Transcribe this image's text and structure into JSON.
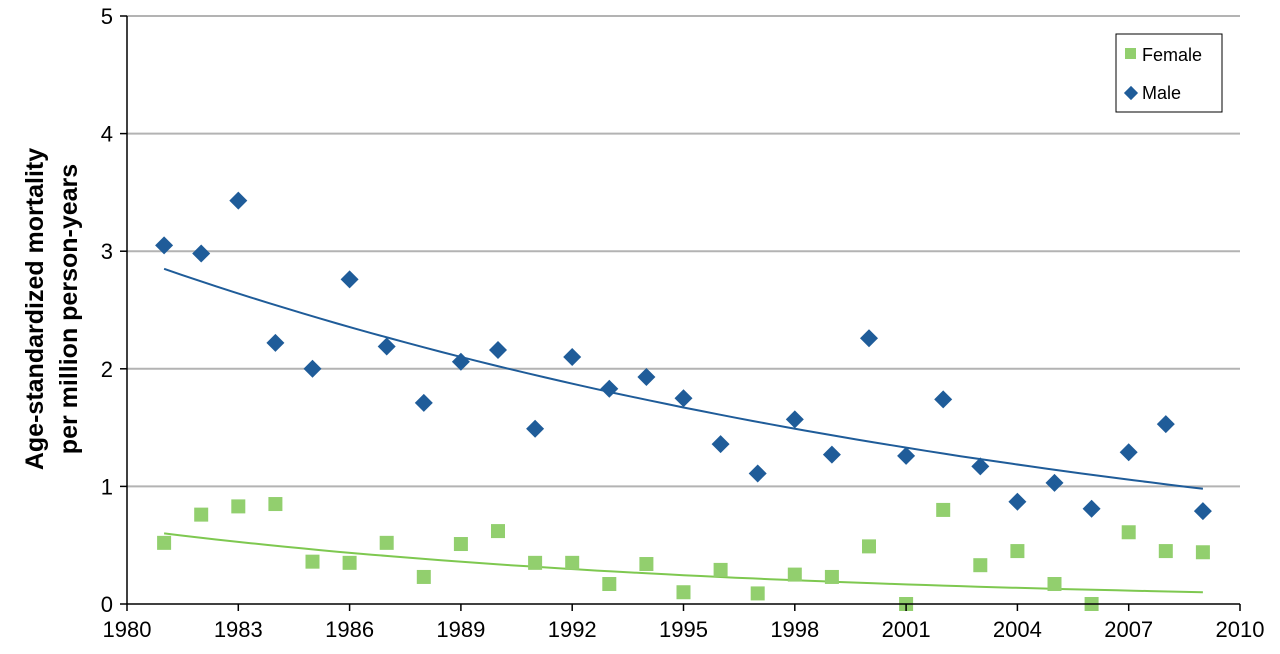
{
  "chart_data": {
    "type": "scatter",
    "title": "",
    "xlabel": "",
    "ylabel": [
      "Age-standardized mortality",
      "per million person-years"
    ],
    "xlim": [
      1980,
      2010
    ],
    "ylim": [
      0,
      5
    ],
    "x_ticks": [
      1980,
      1983,
      1986,
      1989,
      1992,
      1995,
      1998,
      2001,
      2004,
      2007,
      2010
    ],
    "y_ticks": [
      0,
      1,
      2,
      3,
      4,
      5
    ],
    "grid": "horizontal",
    "legend_position": "top-right",
    "series": [
      {
        "name": "Female",
        "marker": "square",
        "color": "#92cf6e",
        "trend_color": "#7ec850",
        "trend": {
          "x": [
            1981,
            2009
          ],
          "y": [
            0.6,
            0.1
          ]
        },
        "x": [
          1981,
          1982,
          1983,
          1984,
          1985,
          1986,
          1987,
          1988,
          1989,
          1990,
          1991,
          1992,
          1993,
          1994,
          1995,
          1996,
          1997,
          1998,
          1999,
          2000,
          2001,
          2002,
          2003,
          2004,
          2005,
          2006,
          2007,
          2008,
          2009
        ],
        "y": [
          0.52,
          0.76,
          0.83,
          0.85,
          0.36,
          0.35,
          0.52,
          0.23,
          0.51,
          0.62,
          0.35,
          0.35,
          0.17,
          0.34,
          0.1,
          0.29,
          0.09,
          0.25,
          0.23,
          0.49,
          0.0,
          0.8,
          0.33,
          0.45,
          0.17,
          0.0,
          0.61,
          0.45,
          0.44
        ]
      },
      {
        "name": "Male",
        "marker": "diamond",
        "color": "#1f5c99",
        "trend_color": "#1f5c99",
        "trend": {
          "x": [
            1981,
            2009
          ],
          "y": [
            2.85,
            0.98
          ]
        },
        "x": [
          1981,
          1982,
          1983,
          1984,
          1985,
          1986,
          1987,
          1988,
          1989,
          1990,
          1991,
          1992,
          1993,
          1994,
          1995,
          1996,
          1997,
          1998,
          1999,
          2000,
          2001,
          2002,
          2003,
          2004,
          2005,
          2006,
          2007,
          2008,
          2009
        ],
        "y": [
          3.05,
          2.98,
          3.43,
          2.22,
          2.0,
          2.76,
          2.19,
          1.71,
          2.06,
          2.16,
          1.49,
          2.1,
          1.83,
          1.93,
          1.75,
          1.36,
          1.11,
          1.57,
          1.27,
          2.26,
          1.26,
          1.74,
          1.17,
          0.87,
          1.03,
          0.81,
          1.29,
          1.53,
          0.79
        ]
      }
    ]
  }
}
